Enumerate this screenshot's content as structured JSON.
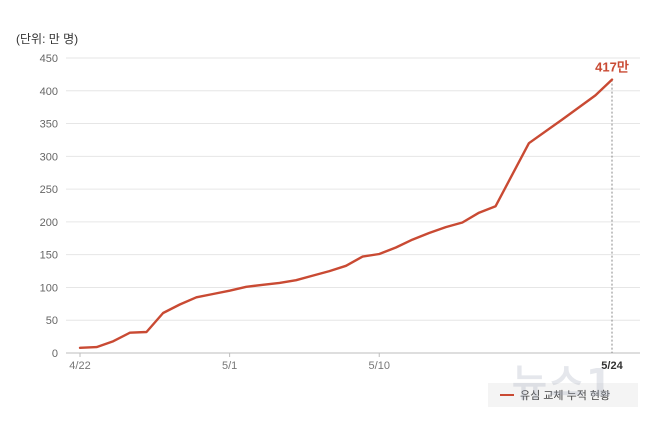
{
  "chart_data": {
    "type": "line",
    "unit_label": "(단위: 만 명)",
    "ylim": [
      0,
      450
    ],
    "y_ticks": [
      0,
      50,
      100,
      150,
      200,
      250,
      300,
      350,
      400,
      450
    ],
    "x_tick_labels": [
      "4/22",
      "5/1",
      "5/10"
    ],
    "x_end_label": "5/24",
    "x_range": [
      "2025-04-22",
      "2025-05-24"
    ],
    "series": [
      {
        "name": "유심 교체 누적 현황",
        "color": "#c94a33",
        "points": [
          {
            "x": "2025-04-22",
            "y": 8
          },
          {
            "x": "2025-04-23",
            "y": 9
          },
          {
            "x": "2025-04-24",
            "y": 18
          },
          {
            "x": "2025-04-25",
            "y": 31
          },
          {
            "x": "2025-04-26",
            "y": 32
          },
          {
            "x": "2025-04-27",
            "y": 61
          },
          {
            "x": "2025-04-28",
            "y": 74
          },
          {
            "x": "2025-04-29",
            "y": 85
          },
          {
            "x": "2025-04-30",
            "y": 90
          },
          {
            "x": "2025-05-01",
            "y": 95
          },
          {
            "x": "2025-05-02",
            "y": 101
          },
          {
            "x": "2025-05-03",
            "y": 104
          },
          {
            "x": "2025-05-04",
            "y": 107
          },
          {
            "x": "2025-05-05",
            "y": 111
          },
          {
            "x": "2025-05-06",
            "y": 118
          },
          {
            "x": "2025-05-07",
            "y": 125
          },
          {
            "x": "2025-05-08",
            "y": 133
          },
          {
            "x": "2025-05-09",
            "y": 147
          },
          {
            "x": "2025-05-10",
            "y": 151
          },
          {
            "x": "2025-05-11",
            "y": 161
          },
          {
            "x": "2025-05-12",
            "y": 173
          },
          {
            "x": "2025-05-13",
            "y": 183
          },
          {
            "x": "2025-05-14",
            "y": 192
          },
          {
            "x": "2025-05-15",
            "y": 199
          },
          {
            "x": "2025-05-16",
            "y": 214
          },
          {
            "x": "2025-05-17",
            "y": 224
          },
          {
            "x": "2025-05-19",
            "y": 320
          },
          {
            "x": "2025-05-21",
            "y": 356
          },
          {
            "x": "2025-05-23",
            "y": 393
          },
          {
            "x": "2025-05-24",
            "y": 417
          }
        ]
      }
    ],
    "end_annotation": "417만",
    "grid": true,
    "legend_position": "bottom-right"
  },
  "watermark": "뉴스1"
}
